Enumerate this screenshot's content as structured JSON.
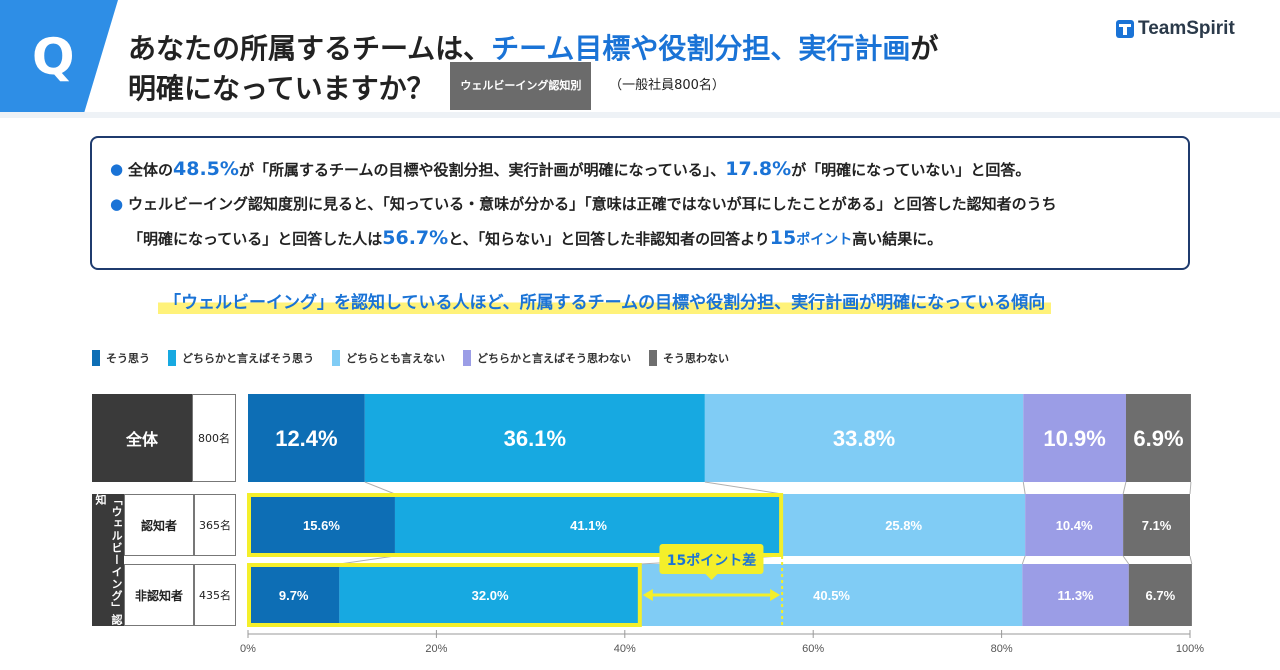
{
  "header": {
    "q_label": "Q",
    "title_part1": "あなたの所属するチームは、",
    "title_highlight": "チーム目標や役割分担、実行計画",
    "title_part2": "が",
    "title_line2": "明確になっていますか？",
    "tag": "ウェルビーイング認知別",
    "sample": "（一般社員800名）",
    "logo": "TeamSpirit"
  },
  "summary": {
    "bullet1": {
      "p1": "全体の",
      "v1": "48.5%",
      "p2": "が「所属するチームの目標や役割分担、実行計画が明確になっている」、",
      "v2": "17.8%",
      "p3": "が「明確になっていない」と回答。"
    },
    "bullet2_line1": "ウェルビーイング認知度別に見ると、「知っている・意味が分かる」「意味は正確ではないが耳にしたことがある」と回答した認知者のうち",
    "bullet2_line2": {
      "p1": "「明確になっている」と回答した人は",
      "v1": "56.7%",
      "p2": "と、「知らない」と回答した非認知者の回答より",
      "v2": "15",
      "v2_unit": "ポイント",
      "p3": "高い結果に。"
    }
  },
  "headline": "「ウェルビーイング」を認知している人ほど、所属するチームの目標や役割分担、実行計画が明確になっている傾向",
  "colors": {
    "c1": "#0d6eb5",
    "c2": "#17a9e1",
    "c3": "#80ccf5",
    "c4": "#9b9de6",
    "c5": "#6e6e6e",
    "highlight": "#f4ef2a"
  },
  "rows": {
    "total_label": "全体",
    "total_count": "800名",
    "group_label": "「ウェルビーイング」認知",
    "aware_label": "認知者",
    "aware_count": "365名",
    "unaware_label": "非認知者",
    "unaware_count": "435名"
  },
  "annotation": "15ポイント差",
  "chart_data": {
    "type": "bar",
    "orientation": "horizontal-stacked-100",
    "legend": [
      "そう思う",
      "どちらかと言えばそう思う",
      "どちらとも言えない",
      "どちらかと言えばそう思わない",
      "そう思わない"
    ],
    "legend_position": "top-left",
    "series_colors": [
      "#0d6eb5",
      "#17a9e1",
      "#80ccf5",
      "#9b9de6",
      "#6e6e6e"
    ],
    "categories": [
      "全体",
      "認知者",
      "非認知者"
    ],
    "values": [
      [
        12.4,
        36.1,
        33.8,
        10.9,
        6.9
      ],
      [
        15.6,
        41.1,
        25.8,
        10.4,
        7.1
      ],
      [
        9.7,
        32.0,
        40.5,
        11.3,
        6.7
      ]
    ],
    "value_labels": [
      [
        "12.4%",
        "36.1%",
        "33.8%",
        "10.9%",
        "6.9%"
      ],
      [
        "15.6%",
        "41.1%",
        "25.8%",
        "10.4%",
        "7.1%"
      ],
      [
        "9.7%",
        "32.0%",
        "40.5%",
        "11.3%",
        "6.7%"
      ]
    ],
    "xlim": [
      0,
      100
    ],
    "xticks": [
      "0%",
      "20%",
      "40%",
      "60%",
      "80%",
      "100%"
    ],
    "grid": false
  }
}
